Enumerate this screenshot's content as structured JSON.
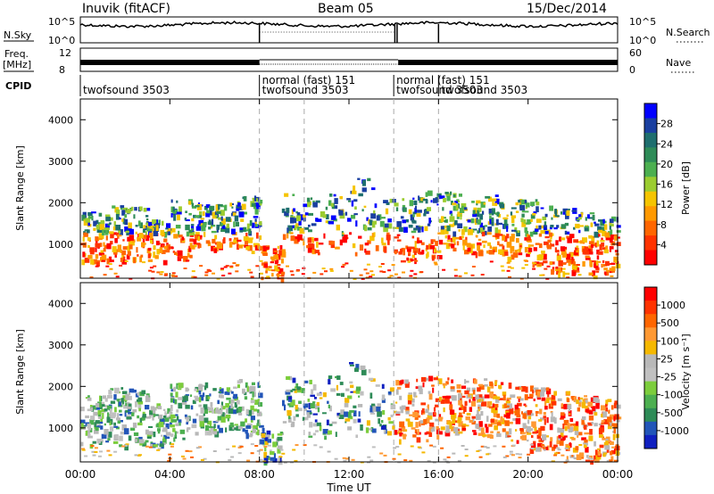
{
  "header": {
    "station": "Inuvik (fitACF)",
    "beam": "Beam 05",
    "date": "15/Dec/2014"
  },
  "top_panels": {
    "nsky_label": "N.Sky",
    "nsky_ticks": [
      "10^5",
      "10^0"
    ],
    "nsearch_label": "N.Search",
    "nsearch_ticks": [
      "10^5",
      "10^0"
    ],
    "freq_label": "Freq.",
    "freq_unit": "[MHz]",
    "freq_ticks": [
      "12",
      "8"
    ],
    "nave_label": "Nave",
    "nave_ticks": [
      "60",
      "0"
    ],
    "cpid_label": "CPID"
  },
  "chart_data": [
    {
      "type": "heatmap",
      "panel": "power",
      "ylabel": "Slant Range [km]",
      "yticks": [
        "4000",
        "3000",
        "2000",
        "1000"
      ],
      "ylim": [
        180,
        4500
      ],
      "colorbar_label": "Power [dB]",
      "colorbar_ticks": [
        "28",
        "24",
        "20",
        "16",
        "12",
        "8",
        "4"
      ],
      "colorbar_colors": [
        "#ff0000",
        "#ff3300",
        "#ff6600",
        "#ff9900",
        "#f5c400",
        "#9bcc30",
        "#4caf50",
        "#2e8b57",
        "#1e6e6e",
        "#1a3fa0",
        "#0000ff"
      ],
      "clim": [
        0,
        30
      ]
    },
    {
      "type": "heatmap",
      "panel": "velocity",
      "ylabel": "Slant Range [km]",
      "yticks": [
        "4000",
        "3000",
        "2000",
        "1000"
      ],
      "ylim": [
        180,
        4500
      ],
      "colorbar_label": "Velocity [m s⁻¹]",
      "colorbar_ticks": [
        "1000",
        "500",
        "100",
        "25",
        "-25",
        "-100",
        "-500",
        "-1000"
      ],
      "colorbar_colors": [
        "#1020c0",
        "#2255b8",
        "#2e8b57",
        "#4caf50",
        "#7ccd3c",
        "#c0c0c0",
        "#b8b8b8",
        "#f5b800",
        "#ff9933",
        "#ff6600",
        "#ff3300",
        "#ff0000"
      ]
    }
  ],
  "cpid_segments": [
    {
      "start": 0,
      "end": 8,
      "labels": [
        "twofsound 3503"
      ]
    },
    {
      "start": 8,
      "end": 14,
      "labels": [
        "normal (fast) 151",
        "twofsound 3503"
      ]
    },
    {
      "start": 14,
      "end": 16,
      "labels": [
        "normal (fast) 151",
        "twofsound 3503"
      ]
    },
    {
      "start": 16,
      "end": 24,
      "labels": [
        "twofsound 3503"
      ]
    }
  ],
  "x_axis": {
    "label": "Time UT",
    "ticks": [
      "00:00",
      "04:00",
      "08:00",
      "12:00",
      "16:00",
      "20:00",
      "00:00"
    ],
    "range_hours": [
      0,
      24
    ]
  }
}
